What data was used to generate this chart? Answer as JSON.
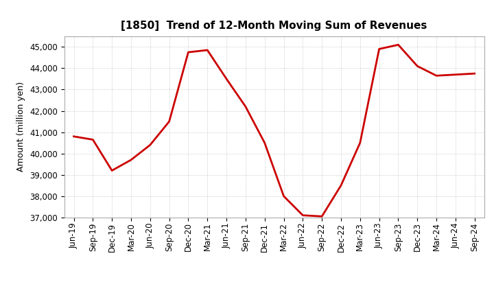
{
  "title": "[1850]  Trend of 12-Month Moving Sum of Revenues",
  "ylabel": "Amount (million yen)",
  "line_color": "#CC0000",
  "background_color": "#FFFFFF",
  "plot_bg_color": "#FFFFFF",
  "grid_color": "#AAAAAA",
  "ylim": [
    37000,
    45500
  ],
  "yticks": [
    37000,
    38000,
    39000,
    40000,
    41000,
    42000,
    43000,
    44000,
    45000
  ],
  "x_labels": [
    "Jun-19",
    "Sep-19",
    "Dec-19",
    "Mar-20",
    "Jun-20",
    "Sep-20",
    "Dec-20",
    "Mar-21",
    "Jun-21",
    "Sep-21",
    "Dec-21",
    "Mar-22",
    "Jun-22",
    "Sep-22",
    "Dec-22",
    "Mar-23",
    "Jun-23",
    "Sep-23",
    "Dec-23",
    "Mar-24",
    "Jun-24",
    "Sep-24"
  ],
  "values": [
    40800,
    40650,
    39200,
    39700,
    40400,
    41500,
    44750,
    44850,
    43500,
    42200,
    40500,
    38000,
    37100,
    37050,
    38500,
    40500,
    44900,
    45100,
    44100,
    43650,
    43700,
    43750
  ],
  "title_fontsize": 11,
  "ylabel_fontsize": 9,
  "tick_fontsize": 8.5,
  "line_width": 2.0
}
